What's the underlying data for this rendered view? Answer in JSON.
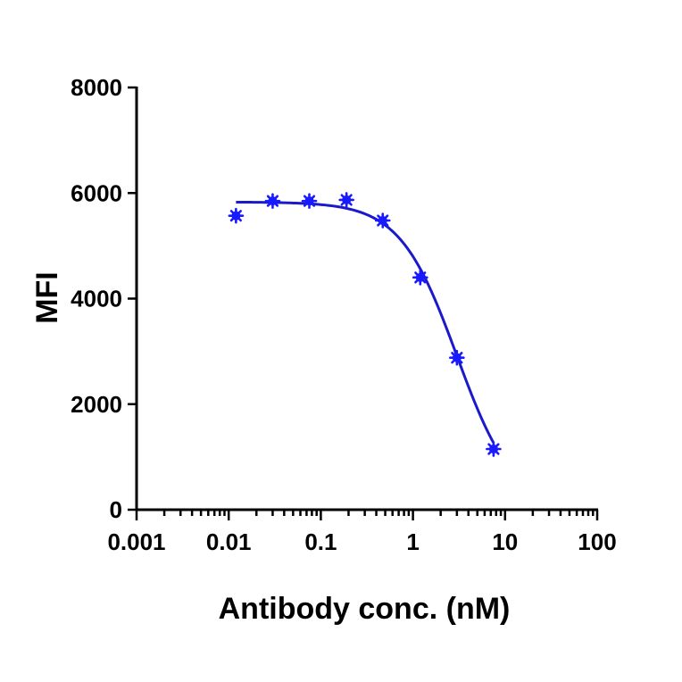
{
  "chart_data": {
    "type": "scatter",
    "title": "",
    "xlabel": "Antibody conc. (nM)",
    "ylabel": "MFI",
    "x_scale": "log",
    "xlim": [
      0.001,
      100
    ],
    "ylim": [
      0,
      8000
    ],
    "x_ticks": [
      {
        "value": 0.001,
        "label": "0.001"
      },
      {
        "value": 0.01,
        "label": "0.01"
      },
      {
        "value": 0.1,
        "label": "0.1"
      },
      {
        "value": 1,
        "label": "1"
      },
      {
        "value": 10,
        "label": "10"
      },
      {
        "value": 100,
        "label": "100"
      }
    ],
    "y_ticks": [
      {
        "value": 0,
        "label": "0"
      },
      {
        "value": 2000,
        "label": "2000"
      },
      {
        "value": 4000,
        "label": "4000"
      },
      {
        "value": 6000,
        "label": "6000"
      },
      {
        "value": 8000,
        "label": "8000"
      }
    ],
    "grid": false,
    "legend": "none",
    "series": [
      {
        "color": "#1a1aff",
        "marker": "asterisk",
        "points": [
          {
            "x": 0.012,
            "y": 5570
          },
          {
            "x": 0.03,
            "y": 5850
          },
          {
            "x": 0.075,
            "y": 5850
          },
          {
            "x": 0.19,
            "y": 5870
          },
          {
            "x": 0.47,
            "y": 5480
          },
          {
            "x": 1.2,
            "y": 4400
          },
          {
            "x": 3.0,
            "y": 2880
          },
          {
            "x": 7.5,
            "y": 1150
          }
        ]
      }
    ],
    "fit_curve": {
      "model": "4PL",
      "color": "#1a1acc",
      "top": 5830,
      "bottom": 0,
      "ec50": 3.0,
      "hill": 1.4,
      "x_range": [
        0.012,
        7.5
      ]
    }
  }
}
